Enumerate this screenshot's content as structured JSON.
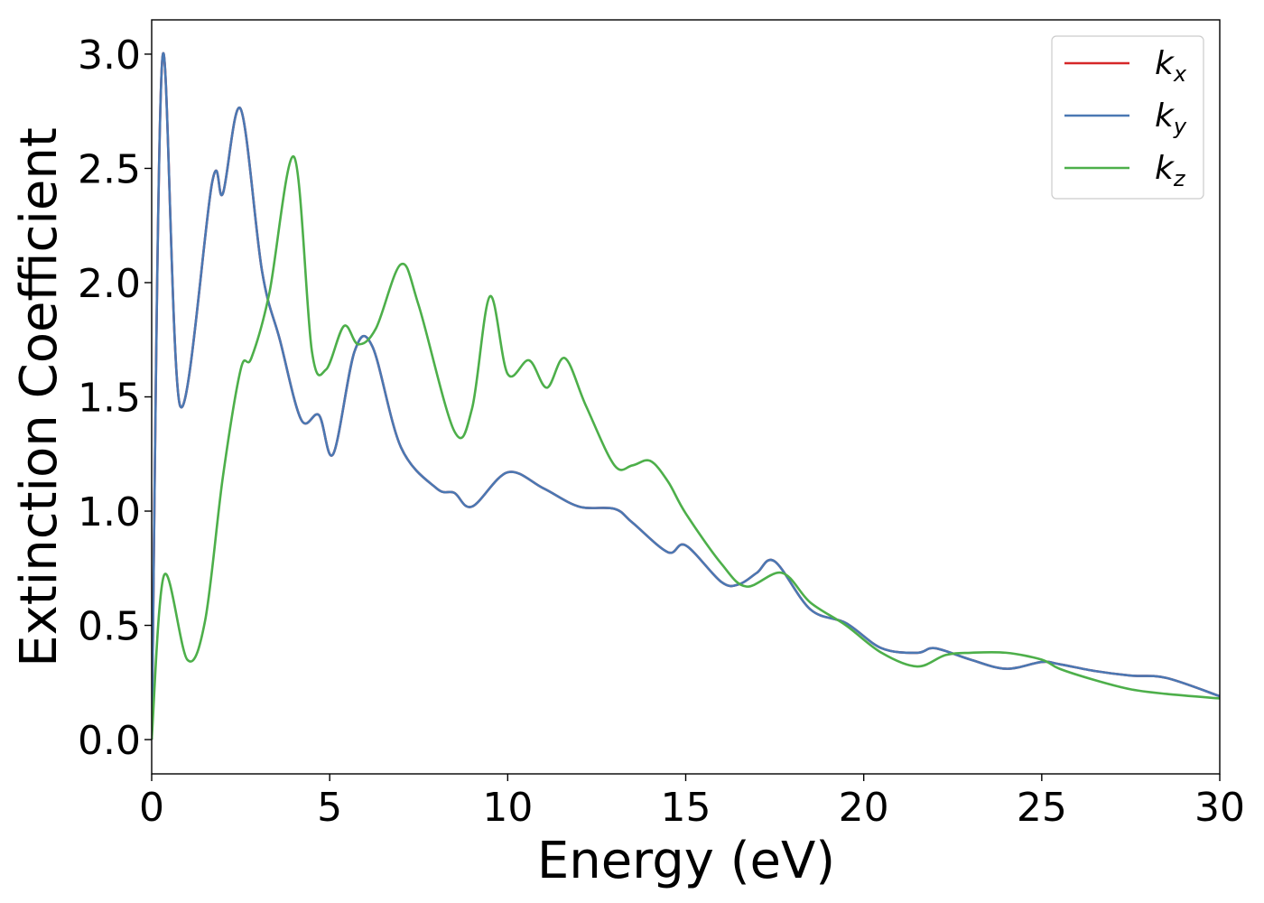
{
  "chart_data": {
    "type": "line",
    "title": "",
    "xlabel": "Energy (eV)",
    "ylabel": "Extinction Coefficient",
    "xlim": [
      0,
      30
    ],
    "ylim": [
      -0.15,
      3.15
    ],
    "xticks": [
      0,
      5,
      10,
      15,
      20,
      25,
      30
    ],
    "xtick_labels": [
      "0",
      "5",
      "10",
      "15",
      "20",
      "25",
      "30"
    ],
    "yticks": [
      0.0,
      0.5,
      1.0,
      1.5,
      2.0,
      2.5,
      3.0
    ],
    "ytick_labels": [
      "0.0",
      "0.5",
      "1.0",
      "1.5",
      "2.0",
      "2.5",
      "3.0"
    ],
    "grid": false,
    "legend_position": "top-right",
    "series": [
      {
        "name": "k",
        "subscript": "x",
        "color": "#d62728",
        "x": [
          0,
          0.3,
          0.8,
          1.7,
          2.0,
          2.5,
          3.1,
          3.6,
          4.2,
          4.7,
          5.1,
          5.7,
          6.2,
          7.0,
          8.0,
          8.5,
          9.0,
          10.0,
          11.0,
          12.0,
          13.0,
          13.5,
          14.5,
          15.0,
          16.0,
          16.5,
          17.0,
          17.5,
          18.5,
          19.5,
          20.5,
          21.5,
          22.0,
          23.0,
          24.0,
          25.0,
          25.5,
          26.5,
          27.5,
          28.5,
          30.0
        ],
        "y": [
          0,
          2.98,
          1.46,
          2.44,
          2.39,
          2.76,
          2.05,
          1.75,
          1.4,
          1.42,
          1.25,
          1.7,
          1.72,
          1.28,
          1.1,
          1.08,
          1.02,
          1.17,
          1.1,
          1.02,
          1.01,
          0.95,
          0.82,
          0.85,
          0.69,
          0.68,
          0.73,
          0.78,
          0.57,
          0.51,
          0.4,
          0.38,
          0.4,
          0.35,
          0.31,
          0.34,
          0.33,
          0.3,
          0.28,
          0.27,
          0.19
        ]
      },
      {
        "name": "k",
        "subscript": "y",
        "color": "#4a78b3",
        "x": [
          0,
          0.3,
          0.8,
          1.7,
          2.0,
          2.5,
          3.1,
          3.6,
          4.2,
          4.7,
          5.1,
          5.7,
          6.2,
          7.0,
          8.0,
          8.5,
          9.0,
          10.0,
          11.0,
          12.0,
          13.0,
          13.5,
          14.5,
          15.0,
          16.0,
          16.5,
          17.0,
          17.5,
          18.5,
          19.5,
          20.5,
          21.5,
          22.0,
          23.0,
          24.0,
          25.0,
          25.5,
          26.5,
          27.5,
          28.5,
          30.0
        ],
        "y": [
          0,
          2.98,
          1.46,
          2.44,
          2.39,
          2.76,
          2.05,
          1.75,
          1.4,
          1.42,
          1.25,
          1.7,
          1.72,
          1.28,
          1.1,
          1.08,
          1.02,
          1.17,
          1.1,
          1.02,
          1.01,
          0.95,
          0.82,
          0.85,
          0.69,
          0.68,
          0.73,
          0.78,
          0.57,
          0.51,
          0.4,
          0.38,
          0.4,
          0.35,
          0.31,
          0.34,
          0.33,
          0.3,
          0.28,
          0.27,
          0.19
        ]
      },
      {
        "name": "k",
        "subscript": "z",
        "color": "#4daf4a",
        "x": [
          0,
          0.35,
          1.0,
          1.5,
          2.0,
          2.5,
          2.8,
          3.3,
          4.0,
          4.5,
          4.9,
          5.4,
          5.8,
          6.3,
          7.0,
          7.5,
          8.5,
          9.0,
          9.5,
          10.0,
          10.6,
          11.1,
          11.6,
          12.2,
          13.0,
          13.5,
          14.0,
          14.5,
          15.0,
          16.0,
          16.7,
          17.7,
          18.5,
          19.5,
          20.5,
          21.5,
          22.3,
          23.0,
          24.0,
          25.0,
          25.5,
          26.5,
          27.5,
          28.5,
          30.0
        ],
        "y": [
          0,
          0.72,
          0.35,
          0.52,
          1.15,
          1.62,
          1.67,
          1.95,
          2.55,
          1.7,
          1.62,
          1.81,
          1.73,
          1.8,
          2.08,
          1.9,
          1.35,
          1.45,
          1.94,
          1.6,
          1.66,
          1.54,
          1.67,
          1.46,
          1.2,
          1.2,
          1.22,
          1.13,
          0.99,
          0.77,
          0.67,
          0.73,
          0.6,
          0.5,
          0.38,
          0.32,
          0.37,
          0.38,
          0.38,
          0.35,
          0.31,
          0.26,
          0.22,
          0.2,
          0.18
        ]
      }
    ]
  }
}
